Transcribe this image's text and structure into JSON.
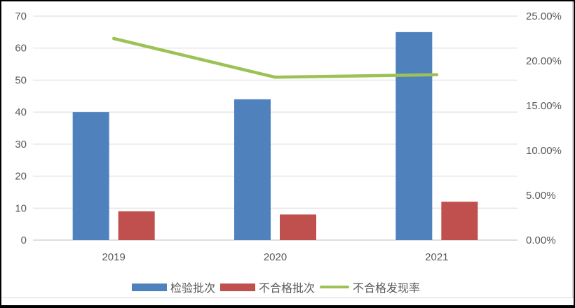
{
  "chart_data": {
    "type": "combo",
    "title": "",
    "categories": [
      "2019",
      "2020",
      "2021"
    ],
    "series": [
      {
        "name": "检验批次",
        "chart_type": "bar",
        "axis": "left",
        "color": "#4F81BD",
        "values": [
          40,
          44,
          65
        ]
      },
      {
        "name": "不合格批次",
        "chart_type": "bar",
        "axis": "left",
        "color": "#C0504D",
        "values": [
          9,
          8,
          12
        ]
      },
      {
        "name": "不合格发现率",
        "chart_type": "line",
        "axis": "right",
        "color": "#9CC255",
        "values": [
          22.5,
          18.18,
          18.46
        ],
        "unit": "%"
      }
    ],
    "x_axis": {
      "tick_labels": [
        "2019",
        "2020",
        "2021"
      ]
    },
    "left_axis": {
      "min": 0,
      "max": 70,
      "step": 10,
      "tick_labels": [
        "0",
        "10",
        "20",
        "30",
        "40",
        "50",
        "60",
        "70"
      ]
    },
    "right_axis": {
      "min": 0,
      "max": 25,
      "step": 5,
      "tick_labels": [
        "0.00%",
        "5.00%",
        "10.00%",
        "15.00%",
        "20.00%",
        "25.00%"
      ]
    },
    "legend": {
      "position": "bottom",
      "entries": [
        "检验批次",
        "不合格批次",
        "不合格发现率"
      ]
    },
    "grid": true,
    "styles": {
      "gridline_color": "#D9D9D9",
      "axis_line_color": "#BFBFBF",
      "tick_label_color": "#595959",
      "frame_border_color": "#D9D9D9",
      "outer_border_color": "#000000",
      "background": "#FFFFFF"
    }
  }
}
